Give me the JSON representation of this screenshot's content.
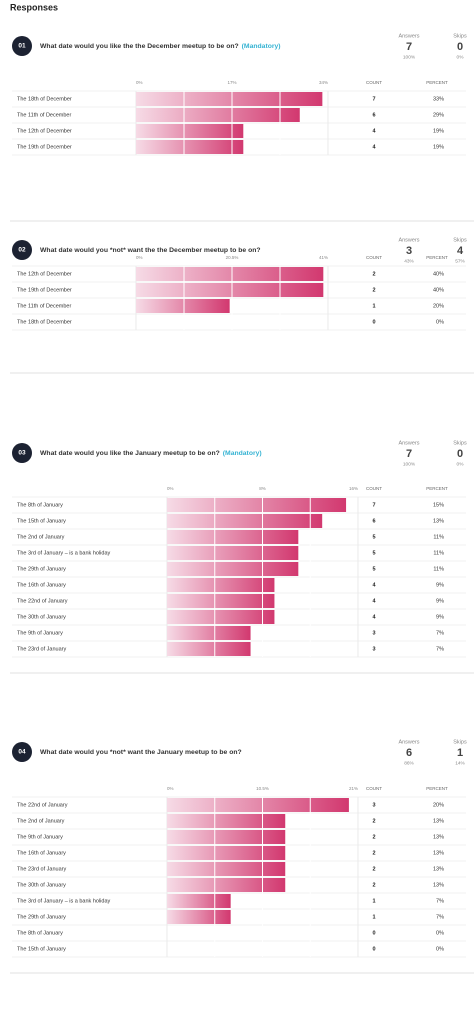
{
  "header": {
    "title": "Responses"
  },
  "questions": [
    {
      "number": "01",
      "text": "What date would you like the the December meetup to be on?",
      "mandatory": "(Mandatory)",
      "answers": {
        "label": "Answers",
        "count": 7,
        "percent": "100%"
      },
      "skips": {
        "label": "Skips",
        "count": 0,
        "percent": "0%"
      },
      "chart": {
        "type": "bar",
        "xlim": [
          0,
          34
        ],
        "xticks": [
          {
            "value": 0,
            "label": "0%"
          },
          {
            "value": 17,
            "label": "17%"
          },
          {
            "value": 34,
            "label": "34%"
          }
        ],
        "count_header": "COUNT",
        "percent_header": "PERCENT",
        "categories": [
          "The 18th of December",
          "The 11th of December",
          "The 12th of December",
          "The 19th of December"
        ],
        "counts": [
          7,
          6,
          4,
          4
        ],
        "values": [
          33,
          29,
          19,
          19
        ],
        "value_labels": [
          "33%",
          "29%",
          "19%",
          "19%"
        ]
      }
    },
    {
      "number": "02",
      "text": "What date would you *not* want the the December meetup to be on?",
      "answers": {
        "label": "Answers",
        "count": 3,
        "percent": "43%"
      },
      "skips": {
        "label": "Skips",
        "count": 4,
        "percent": "57%"
      },
      "chart": {
        "type": "bar",
        "xlim": [
          0,
          41
        ],
        "xticks": [
          {
            "value": 0,
            "label": "0%"
          },
          {
            "value": 20.5,
            "label": "20.5%"
          },
          {
            "value": 41,
            "label": "41%"
          }
        ],
        "count_header": "COUNT",
        "percent_header": "PERCENT",
        "categories": [
          "The 12th of December",
          "The 19th of December",
          "The 11th of December",
          "The 18th of December"
        ],
        "counts": [
          2,
          2,
          1,
          0
        ],
        "values": [
          40,
          40,
          20,
          0
        ],
        "value_labels": [
          "40%",
          "40%",
          "20%",
          "0%"
        ]
      }
    },
    {
      "number": "03",
      "text": "What date would you like the January meetup to be on?",
      "mandatory": "(Mandatory)",
      "answers": {
        "label": "Answers",
        "count": 7,
        "percent": "100%"
      },
      "skips": {
        "label": "Skips",
        "count": 0,
        "percent": "0%"
      },
      "chart": {
        "type": "bar",
        "xlim": [
          0,
          16
        ],
        "xticks": [
          {
            "value": 0,
            "label": "0%"
          },
          {
            "value": 8,
            "label": "8%"
          },
          {
            "value": 16,
            "label": "16%"
          }
        ],
        "count_header": "COUNT",
        "percent_header": "PERCENT",
        "categories": [
          "The 8th of January",
          "The 15th of January",
          "The 2nd of January",
          "The 3rd of January – is a bank holiday",
          "The 29th of January",
          "The 16th of January",
          "The 22nd of January",
          "The 30th of January",
          "The 9th of January",
          "The 23rd of January"
        ],
        "counts": [
          7,
          6,
          5,
          5,
          5,
          4,
          4,
          4,
          3,
          3
        ],
        "values": [
          15,
          13,
          11,
          11,
          11,
          9,
          9,
          9,
          7,
          7
        ],
        "value_labels": [
          "15%",
          "13%",
          "11%",
          "11%",
          "11%",
          "9%",
          "9%",
          "9%",
          "7%",
          "7%"
        ]
      }
    },
    {
      "number": "04",
      "text": "What date would you *not* want the January meetup to be on?",
      "answers": {
        "label": "Answers",
        "count": 6,
        "percent": "86%"
      },
      "skips": {
        "label": "Skips",
        "count": 1,
        "percent": "14%"
      },
      "chart": {
        "type": "bar",
        "xlim": [
          0,
          21
        ],
        "xticks": [
          {
            "value": 0,
            "label": "0%"
          },
          {
            "value": 10.5,
            "label": "10.5%"
          },
          {
            "value": 21,
            "label": "21%"
          }
        ],
        "count_header": "COUNT",
        "percent_header": "PERCENT",
        "categories": [
          "The 22nd of January",
          "The 2nd of January",
          "The 9th of January",
          "The 16th of January",
          "The 23rd of January",
          "The 30th of January",
          "The 3rd of January – is a bank holiday",
          "The 29th of January",
          "The 8th of January",
          "The 15th of January"
        ],
        "counts": [
          3,
          2,
          2,
          2,
          2,
          2,
          1,
          1,
          0,
          0
        ],
        "values": [
          20,
          13,
          13,
          13,
          13,
          13,
          7,
          7,
          0,
          0
        ],
        "value_labels": [
          "20%",
          "13%",
          "13%",
          "13%",
          "13%",
          "13%",
          "7%",
          "7%",
          "0%",
          "0%"
        ]
      }
    }
  ]
}
